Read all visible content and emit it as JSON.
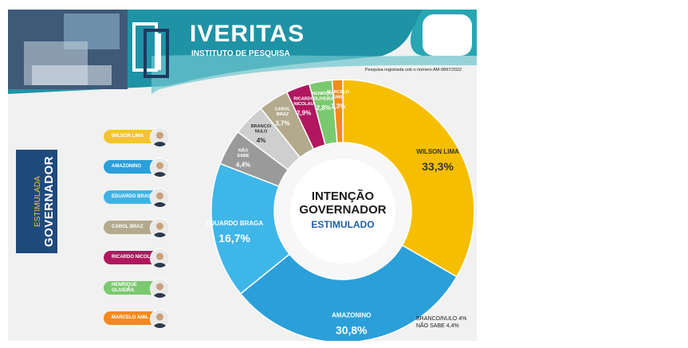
{
  "header": {
    "brand": "IVERITAS",
    "subtitle": "INSTITUTO DE PESQUISA",
    "registration": "Pesquisa registrada sob o número AM-0897/2022"
  },
  "sidebar": {
    "line1": "ESTIMULADA",
    "line2": "GOVERNADOR"
  },
  "candidates": [
    {
      "name": "WILSON LIMA",
      "color": "#f4c430"
    },
    {
      "name": "AMAZONINO",
      "color": "#2b9fd9"
    },
    {
      "name": "EDUARDO BRAGA",
      "color": "#3fb3e6"
    },
    {
      "name": "CAROL BRAZ",
      "color": "#b3a98c"
    },
    {
      "name": "RICARDO NICOLAU",
      "color": "#b0175e"
    },
    {
      "name": "HENRIQUE OLIVEIRA",
      "color": "#7bc96f"
    },
    {
      "name": "MARCELO AMIL",
      "color": "#f28a1e"
    }
  ],
  "chart_data": {
    "type": "pie",
    "title": "INTENÇÃO GOVERNADOR",
    "subtitle": "ESTIMULADO",
    "slices": [
      {
        "label": "WILSON LIMA",
        "value": 33.3,
        "display": "33,3%",
        "color": "#f6be00"
      },
      {
        "label": "AMAZONINO",
        "value": 30.8,
        "display": "30,8%",
        "color": "#2b9fd9"
      },
      {
        "label": "EDUARDO BRAGA",
        "value": 16.7,
        "display": "16,7%",
        "color": "#3fb6e8"
      },
      {
        "label": "NÃO SABE",
        "value": 4.4,
        "display": "4,4%",
        "color": "#9a9a9a"
      },
      {
        "label": "BRANCO/ NULO",
        "value": 4,
        "display": "4%",
        "color": "#cfcfcf"
      },
      {
        "label": "CAROL BRAZ",
        "value": 3.7,
        "display": "3,7%",
        "color": "#b3a98c"
      },
      {
        "label": "RICARDO NICOLAU",
        "value": 2.9,
        "display": "2,9%",
        "color": "#b0175e"
      },
      {
        "label": "HENRIQUE OLIVEIRA",
        "value": 2.8,
        "display": "2,8%",
        "color": "#7bc96f"
      },
      {
        "label": "MARCELO AMIL",
        "value": 1.3,
        "display": "1,3%",
        "color": "#f28a1e"
      }
    ],
    "footnote": [
      "BRANCO/NULO 4%",
      "NÃO SABE 4,4%"
    ]
  }
}
